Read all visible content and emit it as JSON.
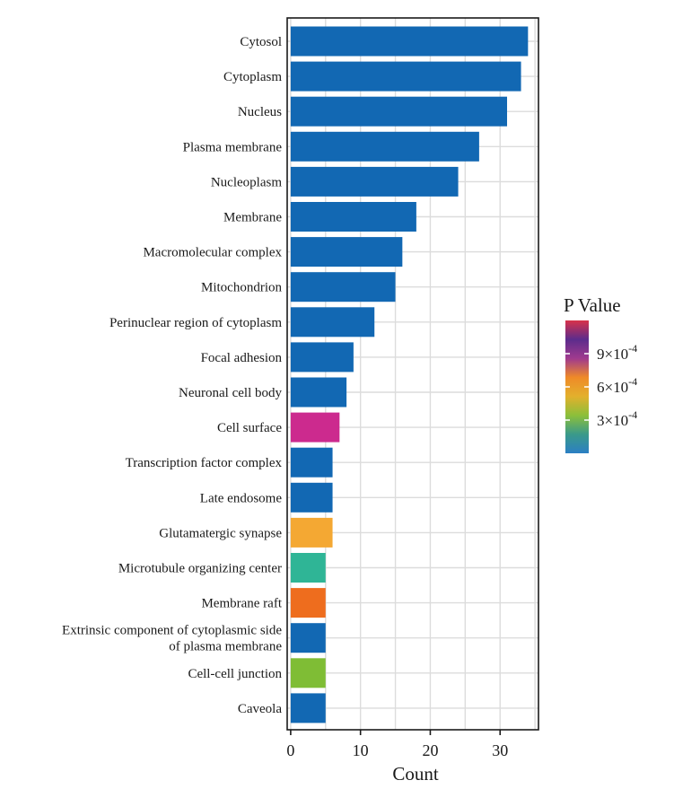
{
  "chart_data": {
    "type": "bar",
    "orientation": "horizontal",
    "title": "",
    "xlabel": "Count",
    "ylabel": "",
    "xlim": [
      -0.5,
      35.5
    ],
    "xticks": [
      0,
      10,
      20,
      30
    ],
    "grid": true,
    "categories": [
      "Cytosol",
      "Cytoplasm",
      "Nucleus",
      "Plasma membrane",
      "Nucleoplasm",
      "Membrane",
      "Macromolecular complex",
      "Mitochondrion",
      "Perinuclear region of cytoplasm",
      "Focal adhesion",
      "Neuronal cell body",
      "Cell surface",
      "Transcription factor complex",
      "Late endosome",
      "Glutamatergic synapse",
      "Microtubule organizing center",
      "Membrane raft",
      "Extrinsic component of cytoplasmic side of plasma membrane",
      "Cell-cell junction",
      "Caveola"
    ],
    "values": [
      34,
      33,
      31,
      27,
      24,
      18,
      16,
      15,
      12,
      9,
      8,
      7,
      6,
      6,
      6,
      5,
      5,
      5,
      5,
      5
    ],
    "bar_colors": [
      "#1268b3",
      "#1268b3",
      "#1268b3",
      "#1268b3",
      "#1268b3",
      "#1268b3",
      "#1268b3",
      "#1268b3",
      "#1268b3",
      "#1268b3",
      "#1268b3",
      "#cc2a8e",
      "#1268b3",
      "#1268b3",
      "#f4a833",
      "#2fb596",
      "#ee6d1e",
      "#1268b3",
      "#7fbd35",
      "#1268b3"
    ],
    "legend": {
      "title": "P Value",
      "position": "right",
      "ticks": [
        {
          "base": "9×10",
          "exp": "-4"
        },
        {
          "base": "6×10",
          "exp": "-4"
        },
        {
          "base": "3×10",
          "exp": "-4"
        }
      ],
      "tick_values": [
        0.0009,
        0.0006,
        0.0003
      ],
      "range": [
        0,
        0.0012
      ],
      "gradient_colors": [
        "#2b7fc4",
        "#3a9a8a",
        "#8cbf3a",
        "#e3b02c",
        "#ef8a28",
        "#a03a8e",
        "#5c2c8c",
        "#d8324a"
      ]
    }
  }
}
